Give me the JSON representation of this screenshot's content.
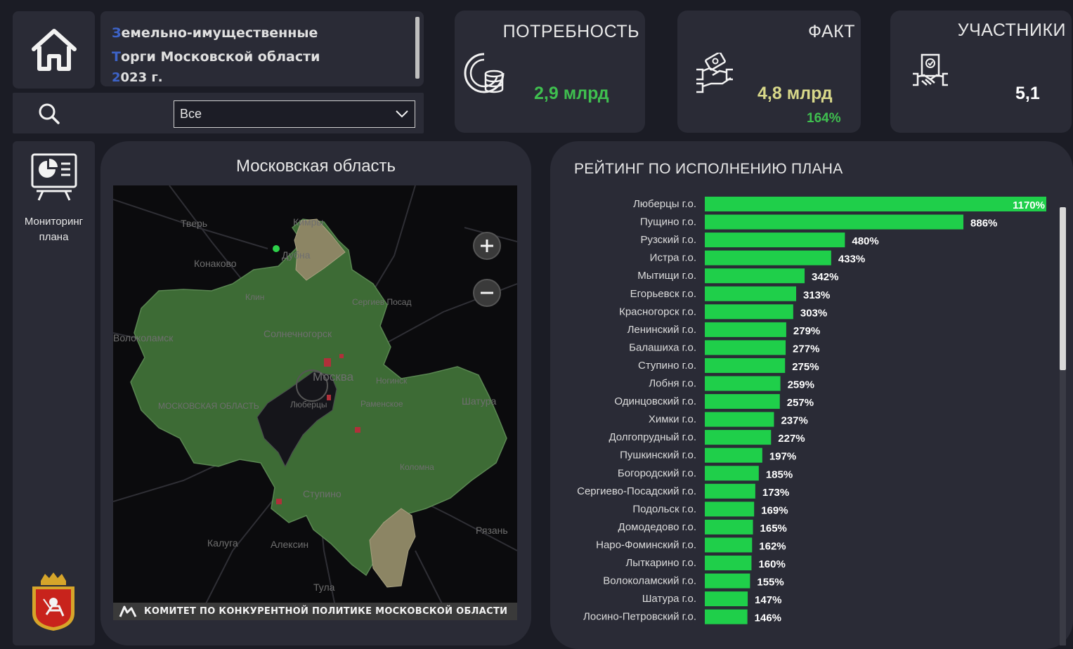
{
  "header": {
    "title_line1": "Земельно-имущественные",
    "title_line2": "Торги Московской области",
    "title_line3": "2023 г."
  },
  "search": {
    "icon": "search-icon",
    "filter_value": "Все"
  },
  "kpis": {
    "need": {
      "title": "ПОТРЕБНОСТЬ",
      "value": "2,9 млрд",
      "icon": "coins-icon",
      "value_color": "#3fbf4f"
    },
    "fact": {
      "title": "ФАКТ",
      "value": "4,8 млрд",
      "percent": "164%",
      "icon": "handshake-money-icon",
      "value_color": "#d8d88a",
      "percent_color": "#3fbf4f"
    },
    "participants": {
      "title": "УЧАСТНИКИ",
      "value": "5,1",
      "icon": "contract-handshake-icon",
      "value_color": "#ffffff"
    }
  },
  "nav": {
    "home_icon": "home-icon",
    "monitoring_label": "Мониторинг\nплана",
    "monitoring_icon": "presentation-chart-icon",
    "coat_icon": "moscow-oblast-coat-of-arms-icon"
  },
  "map": {
    "title": "Московская область",
    "footer": "КОМИТЕТ ПО КОНКУРЕНТНОЙ ПОЛИТИКЕ МОСКОВСКОЙ ОБЛАСТИ",
    "zoom_in_icon": "plus-icon",
    "zoom_out_icon": "minus-icon",
    "labels": [
      "Тверь",
      "Кимры",
      "Дубна",
      "Конаково",
      "Клин",
      "Сергиев Посад",
      "Солнечногорск",
      "Волоколамск",
      "Москва",
      "Ногинск",
      "Люберцы",
      "Раменское",
      "Шатура",
      "МОСКОВСКАЯ ОБЛАСТЬ",
      "Коломна",
      "Ступино",
      "Калуга",
      "Алексин",
      "Рязань",
      "Тула"
    ],
    "colors": {
      "region_green": "#3d6b35",
      "region_tan": "#8c8564",
      "highlight_red": "#b0303a",
      "background": "#0b0b0d"
    }
  },
  "chart_data": {
    "type": "bar",
    "title": "РЕЙТИНГ ПО ИСПОЛНЕНИЮ ПЛАНА",
    "orientation": "horizontal",
    "bar_color": "#1fcf4a",
    "categories": [
      "Люберцы г.о.",
      "Пущино г.о.",
      "Рузский г.о.",
      "Истра г.о.",
      "Мытищи г.о.",
      "Егорьевск г.о.",
      "Красногорск г.о.",
      "Ленинский г.о.",
      "Балашиха г.о.",
      "Ступино г.о.",
      "Лобня г.о.",
      "Одинцовский г.о.",
      "Химки г.о.",
      "Долгопрудный г.о.",
      "Пушкинский г.о.",
      "Богородский г.о.",
      "Сергиево-Посадский г.о.",
      "Подольск г.о.",
      "Домодедово г.о.",
      "Наро-Фоминский г.о.",
      "Лыткарино г.о.",
      "Волоколамский г.о.",
      "Шатура г.о.",
      "Лосино-Петровский г.о."
    ],
    "values": [
      1170,
      886,
      480,
      433,
      342,
      313,
      303,
      279,
      277,
      275,
      259,
      257,
      237,
      227,
      197,
      185,
      173,
      169,
      165,
      162,
      160,
      155,
      147,
      146
    ],
    "labels": [
      "1170%",
      "886%",
      "480%",
      "433%",
      "342%",
      "313%",
      "303%",
      "279%",
      "277%",
      "275%",
      "259%",
      "257%",
      "237%",
      "227%",
      "197%",
      "185%",
      "173%",
      "169%",
      "165%",
      "162%",
      "160%",
      "155%",
      "147%",
      "146%"
    ],
    "xlim": [
      0,
      1170
    ]
  }
}
